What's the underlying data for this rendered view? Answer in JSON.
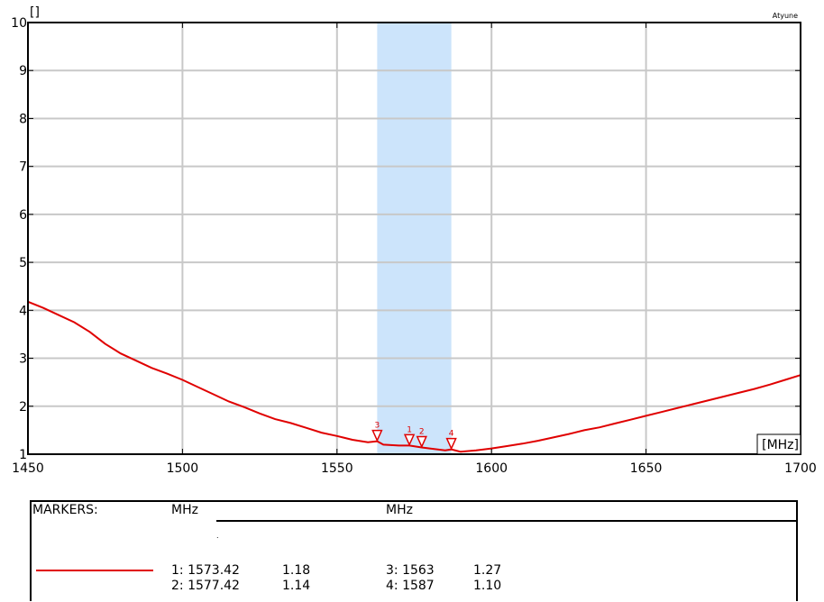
{
  "chart_data": {
    "type": "line",
    "title": "",
    "ylabel": "[]",
    "xlabel": "[MHz]",
    "corner_label": "Atyune",
    "xlim": [
      1450,
      1700
    ],
    "ylim": [
      1,
      10
    ],
    "x_ticks": [
      1450,
      1500,
      1550,
      1600,
      1650,
      1700
    ],
    "y_ticks": [
      1,
      2,
      3,
      4,
      5,
      6,
      7,
      8,
      9,
      10
    ],
    "grid": true,
    "highlight_band": [
      1563,
      1587
    ],
    "series": [
      {
        "color": "#e00000",
        "x": [
          1450,
          1455,
          1460,
          1465,
          1470,
          1475,
          1480,
          1485,
          1490,
          1495,
          1500,
          1505,
          1510,
          1515,
          1520,
          1525,
          1530,
          1535,
          1540,
          1545,
          1550,
          1555,
          1560,
          1563,
          1565,
          1570,
          1573.42,
          1577.42,
          1580,
          1585,
          1587,
          1590,
          1595,
          1600,
          1605,
          1610,
          1615,
          1620,
          1625,
          1630,
          1635,
          1640,
          1645,
          1650,
          1655,
          1660,
          1665,
          1670,
          1675,
          1680,
          1685,
          1690,
          1695,
          1700
        ],
        "y": [
          4.18,
          4.05,
          3.9,
          3.75,
          3.55,
          3.3,
          3.1,
          2.95,
          2.8,
          2.68,
          2.55,
          2.4,
          2.25,
          2.1,
          1.98,
          1.85,
          1.73,
          1.65,
          1.55,
          1.45,
          1.38,
          1.3,
          1.25,
          1.27,
          1.2,
          1.18,
          1.18,
          1.14,
          1.12,
          1.08,
          1.1,
          1.05,
          1.08,
          1.12,
          1.17,
          1.22,
          1.28,
          1.35,
          1.42,
          1.5,
          1.56,
          1.64,
          1.72,
          1.8,
          1.88,
          1.96,
          2.04,
          2.12,
          2.2,
          2.28,
          2.36,
          2.45,
          2.55,
          2.65
        ]
      }
    ],
    "markers": [
      {
        "label": "1",
        "x": 1573.42,
        "y": 1.18
      },
      {
        "label": "2",
        "x": 1577.42,
        "y": 1.14
      },
      {
        "label": "3",
        "x": 1563,
        "y": 1.27
      },
      {
        "label": "4",
        "x": 1587,
        "y": 1.1
      }
    ]
  },
  "markers_table": {
    "title": "MARKERS:",
    "col_unit_1": "MHz",
    "col_unit_2": "MHz",
    "dot": ".",
    "rows": [
      {
        "left": "1: 1573.42",
        "left_val": "1.18",
        "right": "3: 1563",
        "right_val": "1.27"
      },
      {
        "left": "2: 1577.42",
        "left_val": "1.14",
        "right": "4: 1587",
        "right_val": "1.10"
      }
    ]
  }
}
